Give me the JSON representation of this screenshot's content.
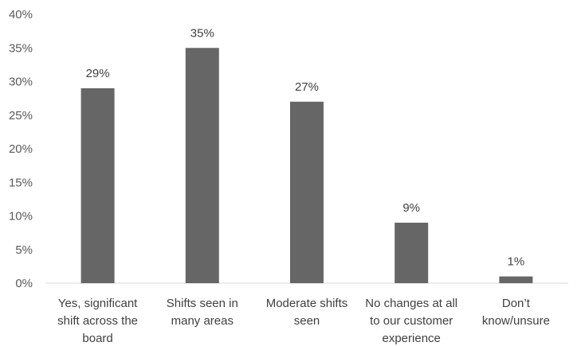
{
  "chart_data": {
    "type": "bar",
    "title": "",
    "xlabel": "",
    "ylabel": "",
    "categories": [
      [
        "Yes, significant",
        "shift across the",
        "board"
      ],
      [
        "Shifts seen in",
        "many areas"
      ],
      [
        "Moderate shifts",
        "seen"
      ],
      [
        "No changes at all",
        "to our customer",
        "experience"
      ],
      [
        "Don’t",
        "know/unsure"
      ]
    ],
    "values": [
      29,
      35,
      27,
      9,
      1
    ],
    "data_labels": [
      "29%",
      "35%",
      "27%",
      "9%",
      "1%"
    ],
    "yticks": [
      0,
      5,
      10,
      15,
      20,
      25,
      30,
      35,
      40
    ],
    "ytick_labels": [
      "0%",
      "5%",
      "10%",
      "15%",
      "20%",
      "25%",
      "30%",
      "35%",
      "40%"
    ],
    "ylim": [
      0,
      40
    ],
    "grid": false,
    "legend": "none",
    "bar_color": "#666666",
    "axis_color": "#d9d9d9"
  }
}
